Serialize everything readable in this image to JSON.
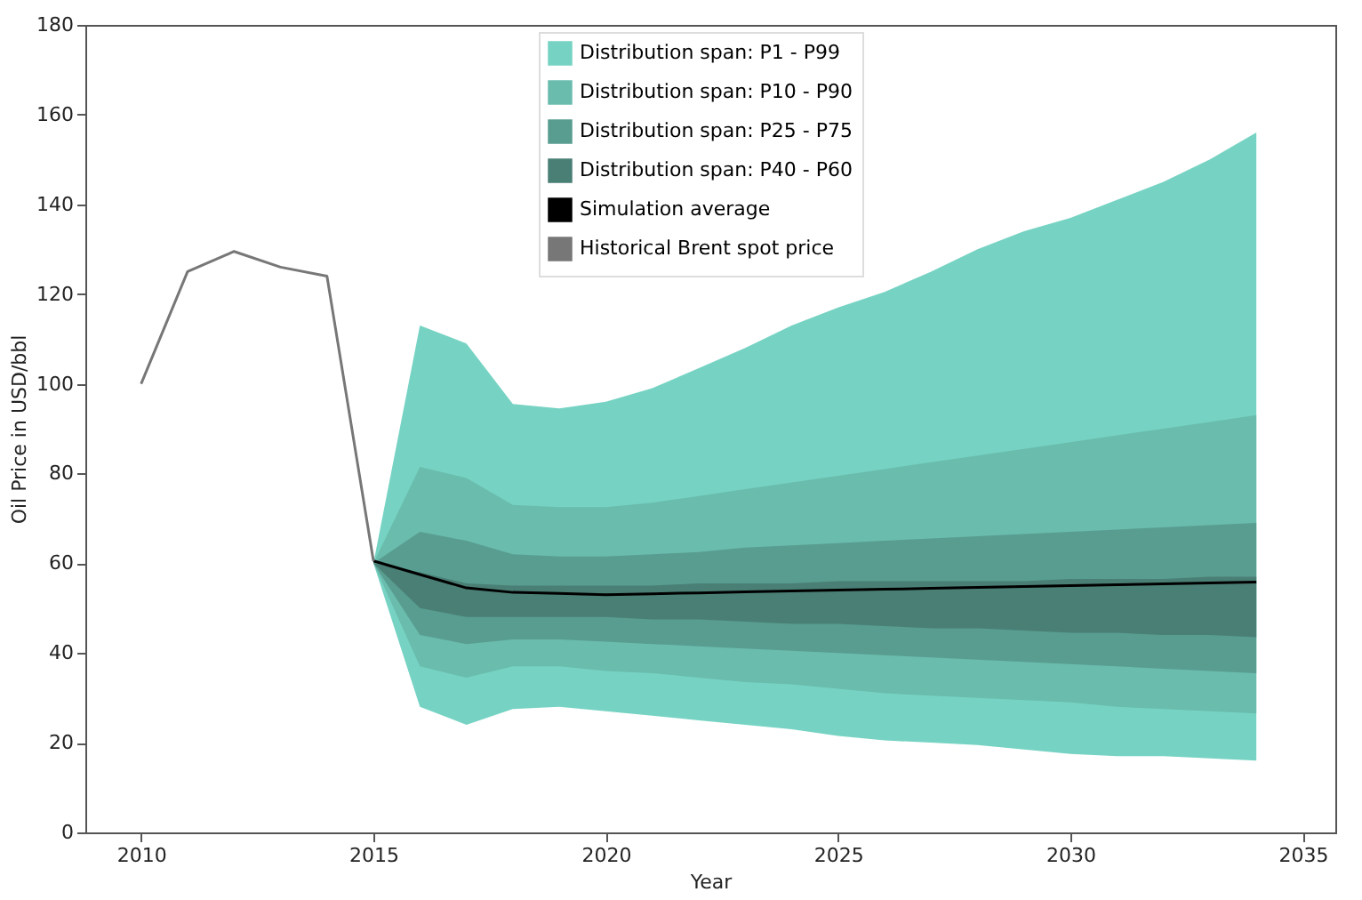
{
  "chart_data": {
    "type": "area",
    "xlabel": "Year",
    "ylabel": "Oil Price in USD/bbl",
    "xlim": [
      2008.8,
      2035.7
    ],
    "ylim": [
      0,
      180
    ],
    "xticks": [
      2010,
      2015,
      2020,
      2025,
      2030,
      2035
    ],
    "yticks": [
      0,
      20,
      40,
      60,
      80,
      100,
      120,
      140,
      160,
      180
    ],
    "grid": false,
    "legend": "top",
    "series": [
      {
        "name": "Distribution span: P1 - P99",
        "color": "#76d3c3",
        "x": [
          2015,
          2016,
          2017,
          2018,
          2019,
          2020,
          2021,
          2022,
          2023,
          2024,
          2025,
          2026,
          2027,
          2028,
          2029,
          2030,
          2031,
          2032,
          2033,
          2034
        ],
        "values": [
          null,
          null,
          null,
          null,
          null,
          null,
          null,
          null,
          null,
          null,
          null,
          null,
          null,
          null,
          null,
          null,
          null,
          null,
          null,
          null
        ],
        "lower": [
          60,
          28,
          24,
          27.5,
          28,
          27,
          26,
          25,
          24,
          23,
          21.5,
          20.5,
          20,
          19.5,
          18.5,
          17.5,
          17,
          17,
          16.5,
          16
        ],
        "upper": [
          60,
          113,
          109,
          95.5,
          94.5,
          96,
          99,
          103.5,
          108,
          113,
          117,
          120.5,
          125,
          130,
          134,
          137,
          141,
          145,
          150,
          156
        ]
      },
      {
        "name": "Distribution span: P10 - P90",
        "color": "#6abcad",
        "x": [
          2015,
          2016,
          2017,
          2018,
          2019,
          2020,
          2021,
          2022,
          2023,
          2024,
          2025,
          2026,
          2027,
          2028,
          2029,
          2030,
          2031,
          2032,
          2033,
          2034
        ],
        "values": [
          null,
          null,
          null,
          null,
          null,
          null,
          null,
          null,
          null,
          null,
          null,
          null,
          null,
          null,
          null,
          null,
          null,
          null,
          null,
          null
        ],
        "lower": [
          60,
          37,
          34.5,
          37,
          37,
          36,
          35.5,
          34.5,
          33.5,
          33,
          32,
          31,
          30.5,
          30,
          29.5,
          29,
          28,
          27.5,
          27,
          26.5
        ],
        "upper": [
          60,
          81.5,
          79,
          73,
          72.5,
          72.5,
          73.5,
          75,
          76.5,
          78,
          79.5,
          81,
          82.5,
          84,
          85.5,
          87,
          88.5,
          90,
          91.5,
          93
        ]
      },
      {
        "name": "Distribution span: P25 - P75",
        "color": "#589d90",
        "x": [
          2015,
          2016,
          2017,
          2018,
          2019,
          2020,
          2021,
          2022,
          2023,
          2024,
          2025,
          2026,
          2027,
          2028,
          2029,
          2030,
          2031,
          2032,
          2033,
          2034
        ],
        "values": [
          null,
          null,
          null,
          null,
          null,
          null,
          null,
          null,
          null,
          null,
          null,
          null,
          null,
          null,
          null,
          null,
          null,
          null,
          null,
          null
        ],
        "lower": [
          60,
          44,
          42,
          43,
          43,
          42.5,
          42,
          41.5,
          41,
          40.5,
          40,
          39.5,
          39,
          38.5,
          38,
          37.5,
          37,
          36.5,
          36,
          35.5
        ],
        "upper": [
          60,
          67,
          65,
          62,
          61.5,
          61.5,
          62,
          62.5,
          63.5,
          64,
          64.5,
          65,
          65.5,
          66,
          66.5,
          67,
          67.5,
          68,
          68.5,
          69
        ]
      },
      {
        "name": "Distribution span: P40 - P60",
        "color": "#4a7f75",
        "x": [
          2015,
          2016,
          2017,
          2018,
          2019,
          2020,
          2021,
          2022,
          2023,
          2024,
          2025,
          2026,
          2027,
          2028,
          2029,
          2030,
          2031,
          2032,
          2033,
          2034
        ],
        "values": [
          null,
          null,
          null,
          null,
          null,
          null,
          null,
          null,
          null,
          null,
          null,
          null,
          null,
          null,
          null,
          null,
          null,
          null,
          null,
          null
        ],
        "lower": [
          60,
          50,
          48,
          48,
          48,
          48,
          47.5,
          47.5,
          47,
          46.5,
          46.5,
          46,
          45.5,
          45.5,
          45,
          44.5,
          44.5,
          44,
          44,
          43.5
        ],
        "upper": [
          60,
          58,
          55.5,
          55,
          55,
          55,
          55,
          55.5,
          55.5,
          55.5,
          56,
          56,
          56,
          56,
          56,
          56.5,
          56.5,
          56.5,
          57,
          57
        ]
      },
      {
        "name": "Simulation average",
        "type": "line",
        "color": "#000000",
        "x": [
          2015,
          2016,
          2017,
          2018,
          2019,
          2020,
          2021,
          2022,
          2023,
          2024,
          2025,
          2026,
          2027,
          2028,
          2029,
          2030,
          2031,
          2032,
          2033,
          2034
        ],
        "values": [
          60.5,
          57.5,
          54.5,
          53.5,
          53.3,
          53,
          53.2,
          53.4,
          53.6,
          53.8,
          54,
          54.2,
          54.4,
          54.6,
          54.8,
          55,
          55.2,
          55.4,
          55.6,
          55.8
        ]
      },
      {
        "name": "Historical Brent spot price",
        "type": "line",
        "color": "#777777",
        "x": [
          2010,
          2011,
          2012,
          2013,
          2014,
          2015
        ],
        "values": [
          100,
          125,
          129.5,
          126,
          124,
          60.5
        ]
      }
    ]
  }
}
